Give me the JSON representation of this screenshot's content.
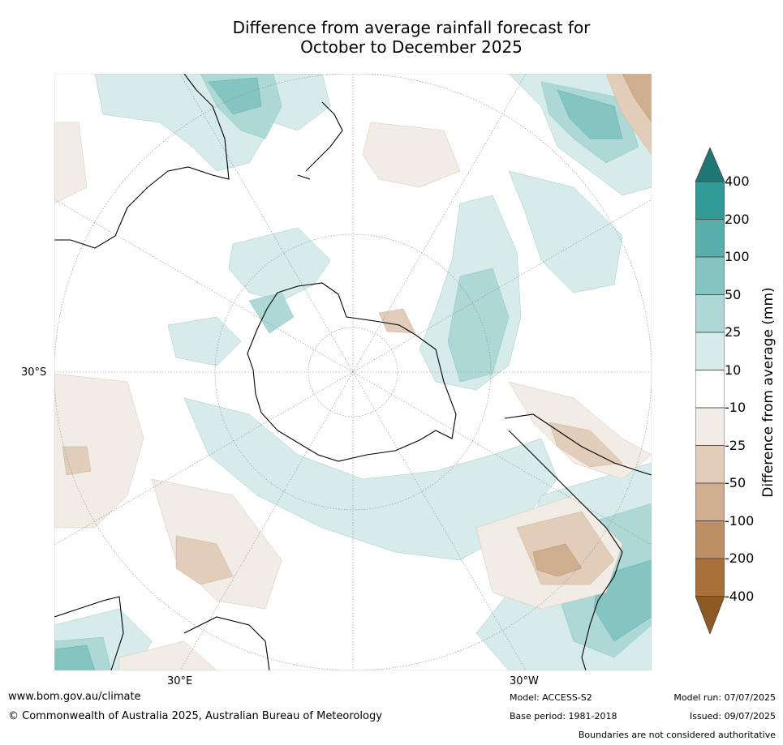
{
  "title": {
    "line1": "Difference from average rainfall forecast for",
    "line2": "October to December 2025"
  },
  "map": {
    "projection": "south-polar-stereographic",
    "lat_label": "30°S",
    "lon_labels": {
      "east": "30°E",
      "west": "30°W"
    }
  },
  "colorbar": {
    "title": "Difference from average (mm)",
    "tick_labels": [
      "400",
      "200",
      "100",
      "50",
      "25",
      "10",
      "-10",
      "-25",
      "-50",
      "-100",
      "-200",
      "-400"
    ],
    "colors": [
      "#1f7775",
      "#319b98",
      "#59aeab",
      "#84c4c1",
      "#add8d6",
      "#d6ebea",
      "#ffffff",
      "#f2ece6",
      "#e1cdb9",
      "#cfae90",
      "#bc8f65",
      "#a8703a",
      "#8e5a24"
    ]
  },
  "footer": {
    "url": "www.bom.gov.au/climate",
    "copyright": "© Commonwealth of Australia 2025, Australian Bureau of Meteorology",
    "model": "Model: ACCESS-S2",
    "base_period": "Base period: 1981-2018",
    "model_run": "Model run: 07/07/2025",
    "issued": "Issued: 09/07/2025",
    "disclaimer": "Boundaries are not considered authoritative"
  }
}
